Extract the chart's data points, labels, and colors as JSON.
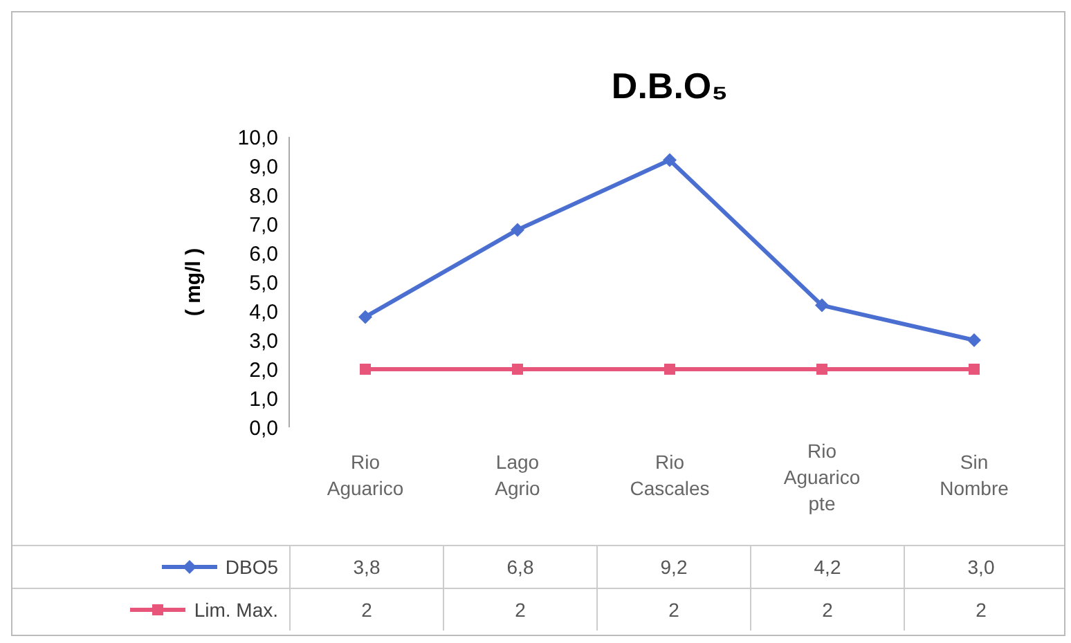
{
  "chart_data": {
    "type": "line",
    "title": "D.B.O₅",
    "ylabel": "( mg/l )",
    "categories": [
      "Rio Aguarico",
      "Lago Agrio",
      "Rio Cascales",
      "Rio Aguarico pte",
      "Sin Nombre"
    ],
    "series": [
      {
        "name": "DBO5",
        "color": "#4a6fd0",
        "marker": "diamond",
        "values": [
          3.8,
          6.8,
          9.2,
          4.2,
          3.0
        ],
        "value_labels": [
          "3,8",
          "6,8",
          "9,2",
          "4,2",
          "3,0"
        ]
      },
      {
        "name": "Lim. Max.",
        "color": "#e8557a",
        "marker": "square",
        "values": [
          2,
          2,
          2,
          2,
          2
        ],
        "value_labels": [
          "2",
          "2",
          "2",
          "2",
          "2"
        ]
      }
    ],
    "ylim": [
      0,
      10
    ],
    "yticks": [
      {
        "value": 0,
        "label": "0,0"
      },
      {
        "value": 1,
        "label": "1,0"
      },
      {
        "value": 2,
        "label": "2,0"
      },
      {
        "value": 3,
        "label": "3,0"
      },
      {
        "value": 4,
        "label": "4,0"
      },
      {
        "value": 5,
        "label": "5,0"
      },
      {
        "value": 6,
        "label": "6,0"
      },
      {
        "value": 7,
        "label": "7,0"
      },
      {
        "value": 8,
        "label": "8,0"
      },
      {
        "value": 9,
        "label": "9,0"
      },
      {
        "value": 10,
        "label": "10,0"
      }
    ],
    "legend": "bottom"
  }
}
